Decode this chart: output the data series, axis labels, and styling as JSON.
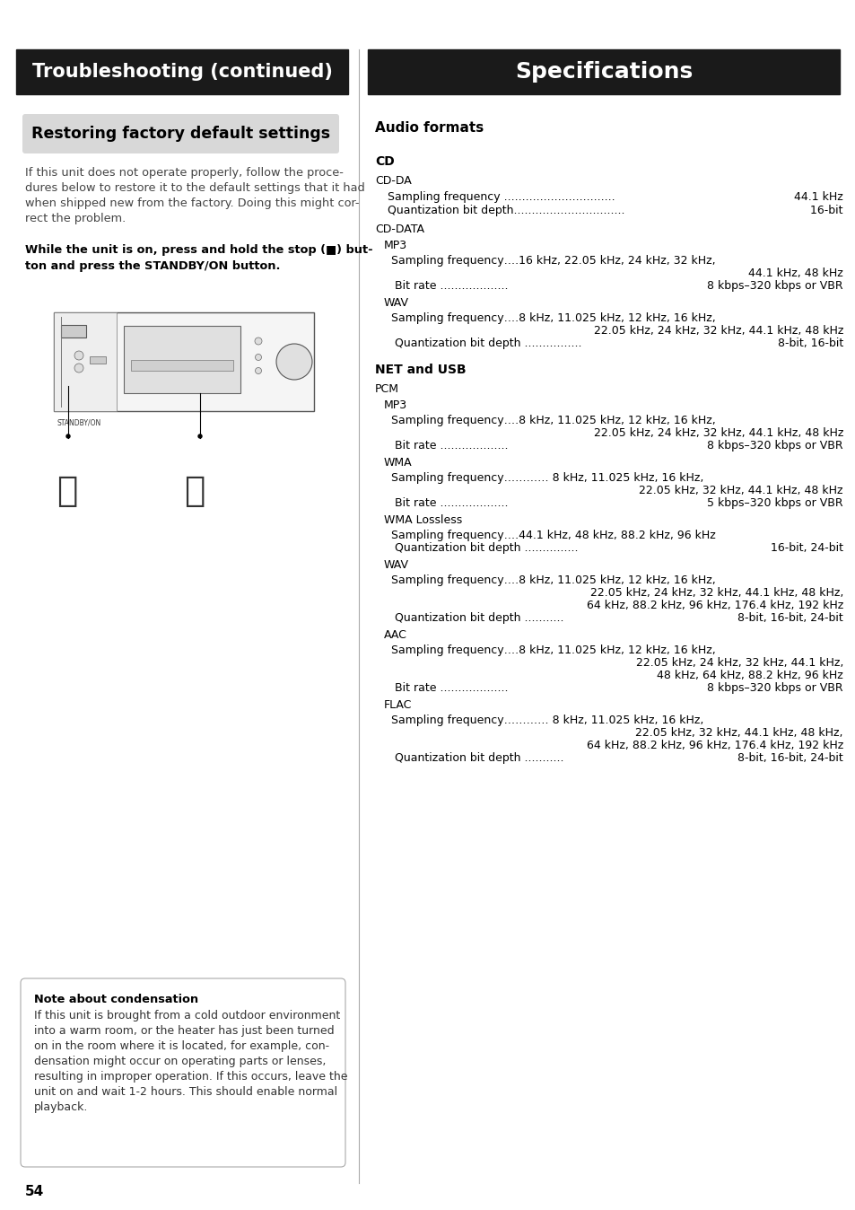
{
  "left_header": "Troubleshooting (continued)",
  "right_header": "Specifications",
  "header_bg": "#1a1a1a",
  "header_text_color": "#ffffff",
  "page_bg": "#ffffff",
  "page_number": "54",
  "left_section_title": "Restoring factory default settings",
  "left_section_title_bg": "#d8d8d8",
  "left_body_text": "If this unit does not operate properly, follow the proce-\ndures below to restore it to the default settings that it had\nwhen shipped new from the factory. Doing this might cor-\nrect the problem.",
  "left_bold_line1": "While the unit is on, press and hold the stop (■) but-",
  "left_bold_line2": "ton and press the STANDBY/ON button.",
  "note_title": "Note about condensation",
  "note_body_lines": [
    "If this unit is brought from a cold outdoor environment",
    "into a warm room, or the heater has just been turned",
    "on in the room where it is located, for example, con-",
    "densation might occur on operating parts or lenses,",
    "resulting in improper operation. If this occurs, leave the",
    "unit on and wait 1-2 hours. This should enable normal",
    "playback."
  ],
  "right_entries": [
    {
      "type": "section_title",
      "text": "Audio formats",
      "extra_before": 30
    },
    {
      "type": "subsection_bold",
      "text": "CD",
      "extra_before": 18
    },
    {
      "type": "category",
      "text": "CD-DA",
      "extra_before": 4
    },
    {
      "type": "dotrow",
      "left": "  Sampling frequency ",
      "dots": "...............................",
      "right": "44.1 kHz",
      "extra_before": 2
    },
    {
      "type": "dotrow",
      "left": "  Quantization bit depth",
      "dots": "...............................",
      "right": " 16-bit",
      "extra_before": 0
    },
    {
      "type": "category",
      "text": "CD-DATA",
      "extra_before": 6
    },
    {
      "type": "indent1",
      "text": "MP3",
      "extra_before": 2
    },
    {
      "type": "indent2_left",
      "text": "Sampling frequency….16 kHz, 22.05 kHz, 24 kHz, 32 kHz,",
      "extra_before": 2
    },
    {
      "type": "indent2_right",
      "text": "44.1 kHz, 48 kHz",
      "extra_before": 0
    },
    {
      "type": "dotrow",
      "left": "    Bit rate ",
      "dots": "...................",
      "right": "8 kbps–320 kbps or VBR",
      "extra_before": 0
    },
    {
      "type": "indent1",
      "text": "WAV",
      "extra_before": 4
    },
    {
      "type": "indent2_left",
      "text": "Sampling frequency….8 kHz, 11.025 kHz, 12 kHz, 16 kHz,",
      "extra_before": 2
    },
    {
      "type": "indent2_right",
      "text": "22.05 kHz, 24 kHz, 32 kHz, 44.1 kHz, 48 kHz",
      "extra_before": 0
    },
    {
      "type": "dotrow",
      "left": "    Quantization bit depth ",
      "dots": "................",
      "right": "8-bit, 16-bit",
      "extra_before": 0
    },
    {
      "type": "subsection_bold",
      "text": "NET and USB",
      "extra_before": 14
    },
    {
      "type": "category",
      "text": "PCM",
      "extra_before": 4
    },
    {
      "type": "indent1",
      "text": "MP3",
      "extra_before": 2
    },
    {
      "type": "indent2_left",
      "text": "Sampling frequency….8 kHz, 11.025 kHz, 12 kHz, 16 kHz,",
      "extra_before": 2
    },
    {
      "type": "indent2_right",
      "text": "22.05 kHz, 24 kHz, 32 kHz, 44.1 kHz, 48 kHz",
      "extra_before": 0
    },
    {
      "type": "dotrow",
      "left": "    Bit rate ",
      "dots": "...................",
      "right": "8 kbps–320 kbps or VBR",
      "extra_before": 0
    },
    {
      "type": "indent1",
      "text": "WMA",
      "extra_before": 4
    },
    {
      "type": "indent2_left",
      "text": "Sampling frequency………… 8 kHz, 11.025 kHz, 16 kHz,",
      "extra_before": 2
    },
    {
      "type": "indent2_right",
      "text": "22.05 kHz, 32 kHz, 44.1 kHz, 48 kHz",
      "extra_before": 0
    },
    {
      "type": "dotrow",
      "left": "    Bit rate ",
      "dots": "...................",
      "right": "5 kbps–320 kbps or VBR",
      "extra_before": 0
    },
    {
      "type": "indent1",
      "text": "WMA Lossless",
      "extra_before": 4
    },
    {
      "type": "indent2_left",
      "text": "Sampling frequency….44.1 kHz, 48 kHz, 88.2 kHz, 96 kHz",
      "extra_before": 2
    },
    {
      "type": "dotrow",
      "left": "    Quantization bit depth ",
      "dots": "...............",
      "right": " 16-bit, 24-bit",
      "extra_before": 0
    },
    {
      "type": "indent1",
      "text": "WAV",
      "extra_before": 4
    },
    {
      "type": "indent2_left",
      "text": "Sampling frequency….8 kHz, 11.025 kHz, 12 kHz, 16 kHz,",
      "extra_before": 2
    },
    {
      "type": "indent2_right",
      "text": "22.05 kHz, 24 kHz, 32 kHz, 44.1 kHz, 48 kHz,",
      "extra_before": 0
    },
    {
      "type": "indent2_right",
      "text": "64 kHz, 88.2 kHz, 96 kHz, 176.4 kHz, 192 kHz",
      "extra_before": 0
    },
    {
      "type": "dotrow",
      "left": "    Quantization bit depth ",
      "dots": "...........",
      "right": "8-bit, 16-bit, 24-bit",
      "extra_before": 0
    },
    {
      "type": "indent1",
      "text": "AAC",
      "extra_before": 4
    },
    {
      "type": "indent2_left",
      "text": "Sampling frequency….8 kHz, 11.025 kHz, 12 kHz, 16 kHz,",
      "extra_before": 2
    },
    {
      "type": "indent2_right",
      "text": "22.05 kHz, 24 kHz, 32 kHz, 44.1 kHz,",
      "extra_before": 0
    },
    {
      "type": "indent2_right",
      "text": "48 kHz, 64 kHz, 88.2 kHz, 96 kHz",
      "extra_before": 0
    },
    {
      "type": "dotrow",
      "left": "    Bit rate ",
      "dots": "...................",
      "right": "8 kbps–320 kbps or VBR",
      "extra_before": 0
    },
    {
      "type": "indent1",
      "text": "FLAC",
      "extra_before": 4
    },
    {
      "type": "indent2_left",
      "text": "Sampling frequency………… 8 kHz, 11.025 kHz, 16 kHz,",
      "extra_before": 2
    },
    {
      "type": "indent2_right",
      "text": "22.05 kHz, 32 kHz, 44.1 kHz, 48 kHz,",
      "extra_before": 0
    },
    {
      "type": "indent2_right",
      "text": "64 kHz, 88.2 kHz, 96 kHz, 176.4 kHz, 192 kHz",
      "extra_before": 0
    },
    {
      "type": "dotrow",
      "left": "    Quantization bit depth ",
      "dots": "...........",
      "right": "8-bit, 16-bit, 24-bit",
      "extra_before": 0
    }
  ]
}
